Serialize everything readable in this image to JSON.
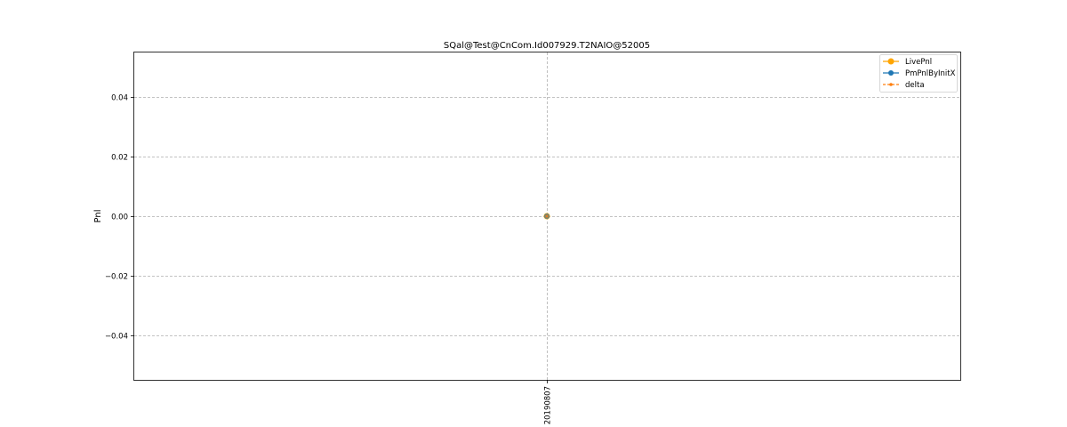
{
  "chart_data": {
    "type": "line",
    "title": "SQal@Test@CnCom.Id007929.T2NAIO@52005",
    "xlabel": "",
    "ylabel": "Pnl",
    "categories": [
      "20190807"
    ],
    "ylim": [
      -0.055,
      0.055
    ],
    "yticks": [
      0.04,
      0.02,
      0.0,
      -0.02,
      -0.04
    ],
    "ytick_labels": [
      "0.04",
      "0.02",
      "0.00",
      "−0.02",
      "−0.04"
    ],
    "grid": true,
    "legend_position": "top-right",
    "series": [
      {
        "name": "LivePnl",
        "values": [
          0.0
        ],
        "color": "#ffa500",
        "style": "solid",
        "marker": "large-circle"
      },
      {
        "name": "PmPnlByInitX",
        "values": [
          0.0
        ],
        "color": "#1f77b4",
        "style": "solid",
        "marker": "circle"
      },
      {
        "name": "delta",
        "values": [
          0.0
        ],
        "color": "#ff7f0e",
        "style": "dashed",
        "marker": "small-circle"
      }
    ]
  }
}
